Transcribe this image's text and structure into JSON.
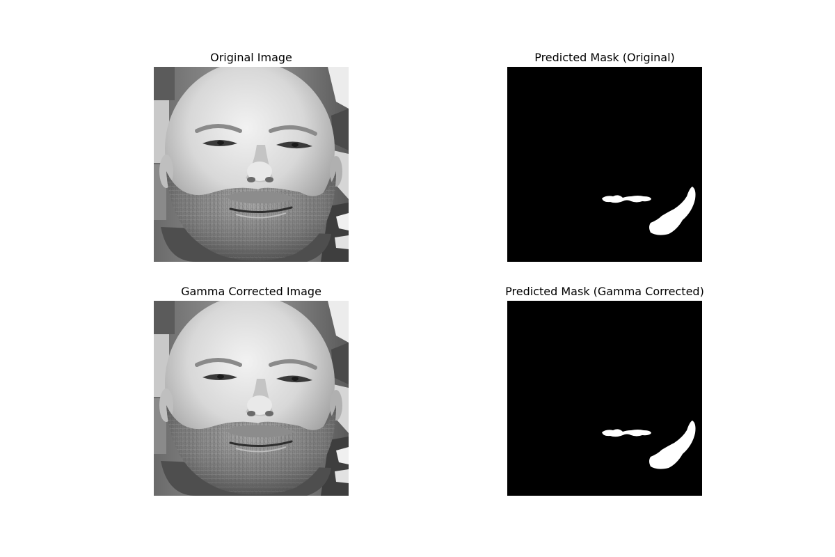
{
  "figure": {
    "panels": [
      {
        "title": "Original Image",
        "kind": "photo"
      },
      {
        "title": "Predicted Mask (Original)",
        "kind": "mask"
      },
      {
        "title": "Gamma Corrected Image",
        "kind": "photo"
      },
      {
        "title": "Predicted Mask (Gamma Corrected)",
        "kind": "mask"
      }
    ],
    "colors": {
      "background": "#ffffff",
      "mask_background": "#000000",
      "mask_foreground": "#ffffff"
    }
  }
}
